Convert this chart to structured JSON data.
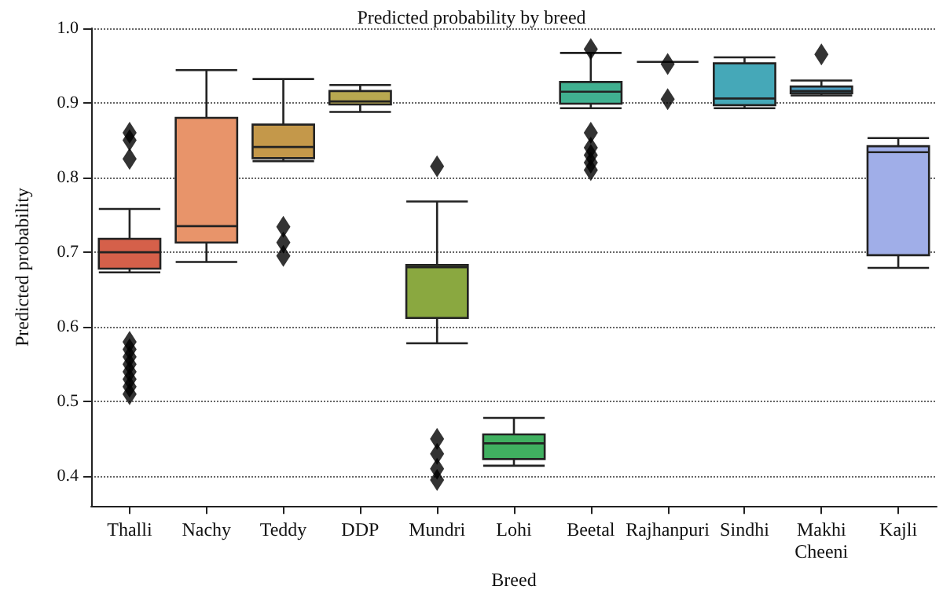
{
  "chart_data": {
    "type": "box",
    "title": "Predicted probability by breed",
    "xlabel": "Breed",
    "ylabel": "Predicted probability",
    "categories": [
      "Thalli",
      "Nachy",
      "Teddy",
      "DDP",
      "Mundri",
      "Lohi",
      "Beetal",
      "Rajhanpuri",
      "Sindhi",
      "Makhi\nCheeni",
      "Kajli"
    ],
    "colors": [
      "#d5604a",
      "#e8946a",
      "#c4984a",
      "#b8a850",
      "#8aa840",
      "#40b060",
      "#40b090",
      null,
      "#45a8b8",
      "#4a9cc0",
      "#a0aee8"
    ],
    "boxes": [
      {
        "low": 0.673,
        "q1": 0.678,
        "median": 0.7,
        "q3": 0.718,
        "high": 0.758,
        "outliers": [
          0.86,
          0.85,
          0.825,
          0.58,
          0.57,
          0.56,
          0.55,
          0.54,
          0.53,
          0.52,
          0.51
        ]
      },
      {
        "low": 0.687,
        "q1": 0.713,
        "median": 0.735,
        "q3": 0.88,
        "high": 0.944
      },
      {
        "low": 0.822,
        "q1": 0.826,
        "median": 0.841,
        "q3": 0.871,
        "high": 0.932,
        "outliers": [
          0.734,
          0.713,
          0.695
        ]
      },
      {
        "low": 0.888,
        "q1": 0.898,
        "median": 0.902,
        "q3": 0.916,
        "high": 0.924
      },
      {
        "low": 0.578,
        "q1": 0.612,
        "median": 0.68,
        "q3": 0.683,
        "high": 0.768,
        "outliers": [
          0.815,
          0.45,
          0.43,
          0.41,
          0.395
        ]
      },
      {
        "low": 0.414,
        "q1": 0.423,
        "median": 0.444,
        "q3": 0.456,
        "high": 0.478
      },
      {
        "low": 0.893,
        "q1": 0.899,
        "median": 0.915,
        "q3": 0.928,
        "high": 0.967,
        "outliers": [
          0.972,
          0.86,
          0.84,
          0.83,
          0.82,
          0.81
        ]
      },
      {
        "low": 0.955,
        "q1": 0.955,
        "median": 0.955,
        "q3": 0.955,
        "high": 0.955,
        "outliers": [
          0.952,
          0.905
        ]
      },
      {
        "low": 0.893,
        "q1": 0.897,
        "median": 0.906,
        "q3": 0.953,
        "high": 0.961
      },
      {
        "low": 0.91,
        "q1": 0.913,
        "median": 0.916,
        "q3": 0.922,
        "high": 0.93,
        "outliers": [
          0.965
        ]
      },
      {
        "low": 0.679,
        "q1": 0.696,
        "median": 0.834,
        "q3": 0.842,
        "high": 0.853
      }
    ],
    "ylim": [
      0.36,
      1.0
    ],
    "yticks": [
      {
        "value": 0.4,
        "label": "0.4"
      },
      {
        "value": 0.5,
        "label": "0.5"
      },
      {
        "value": 0.6,
        "label": "0.6"
      },
      {
        "value": 0.7,
        "label": "0.7"
      },
      {
        "value": 0.8,
        "label": "0.8"
      },
      {
        "value": 0.9,
        "label": "0.9"
      },
      {
        "value": 1.0,
        "label": "1.0"
      }
    ],
    "grid": "y",
    "marker": "diamond"
  }
}
